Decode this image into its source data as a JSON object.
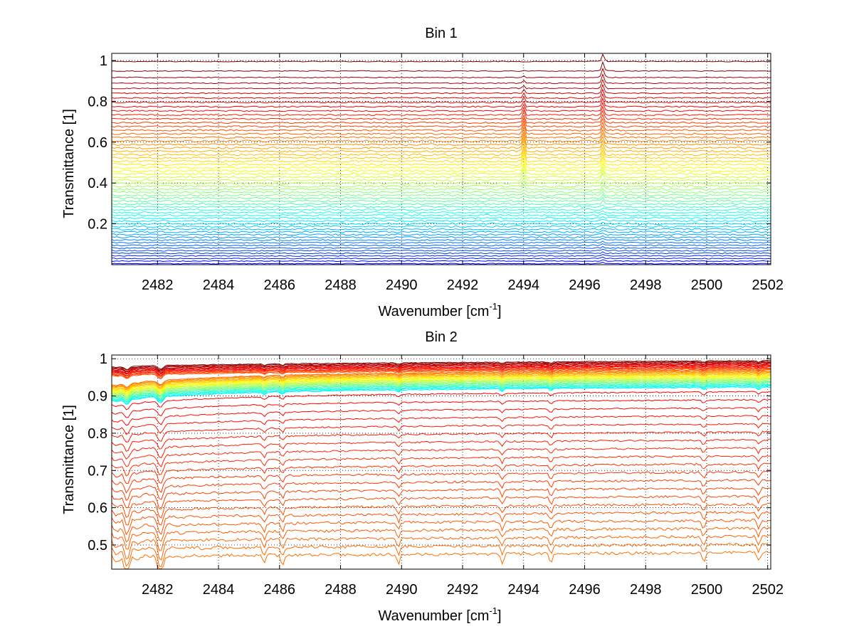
{
  "figure": {
    "background": "#ffffff"
  },
  "chart_data": [
    {
      "type": "line",
      "title": "Bin 1",
      "xlabel": "Wavenumber [cm",
      "xlabel_sup": "-1",
      "xlabel_tail": "]",
      "ylabel": "Transmittance [1]",
      "xlim": [
        2480.5,
        2502.1
      ],
      "ylim": [
        0.0,
        1.035
      ],
      "xticks": [
        2482,
        2484,
        2486,
        2488,
        2490,
        2492,
        2494,
        2496,
        2498,
        2500,
        2502
      ],
      "yticks": [
        0.2,
        0.4,
        0.6,
        0.8,
        1
      ],
      "ytick_labels": [
        "0.2",
        "0.4",
        "0.6",
        "0.8",
        "1"
      ],
      "grid": true,
      "colormap": "jet",
      "series_count": 60,
      "series_baselines": {
        "top": 0.995,
        "bottom": 0.005,
        "shape": "progressively denser toward bottom"
      },
      "features": [
        {
          "x": 2494.0,
          "kind": "sharp line visible in mid-range curves"
        },
        {
          "x": 2496.6,
          "kind": "sharp line, strongest near top curves"
        }
      ]
    },
    {
      "type": "line",
      "title": "Bin 2",
      "xlabel": "Wavenumber [cm",
      "xlabel_sup": "-1",
      "xlabel_tail": "]",
      "ylabel": "Transmittance [1]",
      "xlim": [
        2480.5,
        2502.1
      ],
      "ylim": [
        0.435,
        1.01
      ],
      "xticks": [
        2482,
        2484,
        2486,
        2488,
        2490,
        2492,
        2494,
        2496,
        2498,
        2500,
        2502
      ],
      "yticks": [
        0.5,
        0.6,
        0.7,
        0.8,
        0.9,
        1
      ],
      "ytick_labels": [
        "0.5",
        "0.6",
        "0.7",
        "0.8",
        "0.9",
        "1"
      ],
      "grid": true,
      "colormap": "jet",
      "series_count": 55,
      "series_baselines": {
        "top_start": 0.985,
        "top_end": 0.995,
        "bottom_start": 0.47,
        "bottom_end": 0.48,
        "shape": "dense cluster near 0.92-0.99, sparse dark-red curves below"
      },
      "features": [
        {
          "x": 2481.0,
          "kind": "absorption dips, strong"
        },
        {
          "x": 2482.1,
          "kind": "absorption dips, strong"
        },
        {
          "x": 2485.5,
          "kind": "absorption dip"
        },
        {
          "x": 2486.1,
          "kind": "absorption dip"
        },
        {
          "x": 2489.9,
          "kind": "absorption dip"
        },
        {
          "x": 2493.3,
          "kind": "absorption dip"
        },
        {
          "x": 2494.9,
          "kind": "absorption dip"
        },
        {
          "x": 2499.9,
          "kind": "absorption dip"
        },
        {
          "x": 2501.7,
          "kind": "absorption dip"
        }
      ]
    }
  ]
}
